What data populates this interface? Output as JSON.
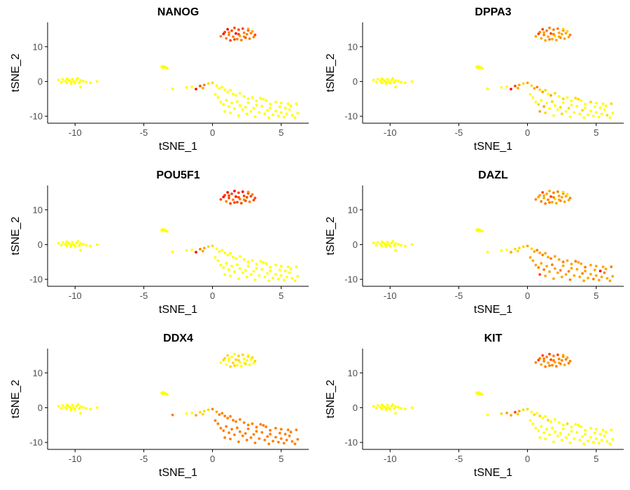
{
  "chart_data": {
    "type": "scatter",
    "xlabel": "tSNE_1",
    "ylabel": "tSNE_2",
    "xlim": [
      -12,
      7
    ],
    "ylim": [
      -12,
      17
    ],
    "xticks": [
      -10,
      -5,
      0,
      5
    ],
    "yticks": [
      -10,
      0,
      10
    ],
    "xtick_labels": [
      "-10",
      "-5",
      "0",
      "5"
    ],
    "ytick_labels": [
      "-10",
      "0",
      "10"
    ],
    "grid": false,
    "legend": "none",
    "color_scale": [
      "#ffff00",
      "#ffd700",
      "#ffa500",
      "#ff7f00",
      "#ff4500",
      "#ff0000"
    ],
    "points": [
      [
        -11.2,
        0.4
      ],
      [
        -11.0,
        -0.2
      ],
      [
        -10.9,
        0.6
      ],
      [
        -10.7,
        0.1
      ],
      [
        -10.6,
        -0.4
      ],
      [
        -10.5,
        0.5
      ],
      [
        -10.4,
        0.2
      ],
      [
        -10.3,
        -0.1
      ],
      [
        -10.2,
        0.7
      ],
      [
        -10.1,
        0.0
      ],
      [
        -10.0,
        -0.5
      ],
      [
        -9.9,
        0.4
      ],
      [
        -9.8,
        0.9
      ],
      [
        -9.7,
        -0.3
      ],
      [
        -9.6,
        0.3
      ],
      [
        -9.4,
        0.1
      ],
      [
        -9.2,
        -0.2
      ],
      [
        -8.9,
        -0.4
      ],
      [
        -10.3,
        -0.6
      ],
      [
        -10.6,
        0.8
      ],
      [
        -9.6,
        -1.6
      ],
      [
        -8.4,
        0.0
      ],
      [
        -3.7,
        4.2
      ],
      [
        -3.6,
        3.9
      ],
      [
        -3.5,
        4.3
      ],
      [
        -3.4,
        4.0
      ],
      [
        -3.3,
        3.8
      ],
      [
        -3.6,
        4.4
      ],
      [
        -2.9,
        -2.1
      ],
      [
        -1.9,
        -1.7
      ],
      [
        -1.5,
        -1.5
      ],
      [
        -0.9,
        -1.3
      ],
      [
        -0.6,
        -1.0
      ],
      [
        -0.3,
        -0.6
      ],
      [
        -1.2,
        -2.2
      ],
      [
        -0.7,
        -1.9
      ],
      [
        0.0,
        -0.4
      ],
      [
        0.3,
        -1.2
      ],
      [
        0.5,
        -2.0
      ],
      [
        0.7,
        -1.6
      ],
      [
        0.9,
        -2.4
      ],
      [
        1.1,
        -3.0
      ],
      [
        1.3,
        -2.5
      ],
      [
        1.5,
        -3.6
      ],
      [
        1.7,
        -4.0
      ],
      [
        2.0,
        -3.4
      ],
      [
        2.3,
        -4.3
      ],
      [
        2.6,
        -5.0
      ],
      [
        2.9,
        -4.6
      ],
      [
        3.2,
        -5.6
      ],
      [
        3.5,
        -4.8
      ],
      [
        3.9,
        -5.5
      ],
      [
        4.2,
        -6.5
      ],
      [
        4.6,
        -5.9
      ],
      [
        5.0,
        -6.2
      ],
      [
        5.3,
        -7.6
      ],
      [
        5.7,
        -7.0
      ],
      [
        6.1,
        -6.4
      ],
      [
        0.4,
        -4.6
      ],
      [
        0.6,
        -5.9
      ],
      [
        0.8,
        -6.6
      ],
      [
        1.0,
        -5.4
      ],
      [
        1.2,
        -7.2
      ],
      [
        1.4,
        -6.2
      ],
      [
        1.6,
        -7.8
      ],
      [
        1.8,
        -5.8
      ],
      [
        2.0,
        -6.9
      ],
      [
        2.2,
        -8.1
      ],
      [
        2.4,
        -7.4
      ],
      [
        2.6,
        -6.1
      ],
      [
        2.8,
        -8.6
      ],
      [
        3.0,
        -7.7
      ],
      [
        3.2,
        -6.8
      ],
      [
        3.4,
        -8.9
      ],
      [
        3.6,
        -7.1
      ],
      [
        3.8,
        -9.3
      ],
      [
        4.0,
        -8.3
      ],
      [
        4.2,
        -7.6
      ],
      [
        4.4,
        -9.6
      ],
      [
        4.6,
        -8.5
      ],
      [
        4.8,
        -9.9
      ],
      [
        5.0,
        -8.9
      ],
      [
        5.2,
        -10.2
      ],
      [
        5.4,
        -9.3
      ],
      [
        5.6,
        -8.1
      ],
      [
        5.8,
        -9.7
      ],
      [
        6.0,
        -10.4
      ],
      [
        6.2,
        -9.1
      ],
      [
        0.2,
        -3.7
      ],
      [
        0.9,
        -8.6
      ],
      [
        1.3,
        -9.0
      ],
      [
        1.9,
        -9.8
      ],
      [
        2.5,
        -9.3
      ],
      [
        3.1,
        -10.1
      ],
      [
        3.7,
        -5.1
      ],
      [
        4.1,
        -10.4
      ],
      [
        4.9,
        -7.3
      ],
      [
        5.5,
        -6.4
      ],
      [
        0.6,
        13.0
      ],
      [
        0.9,
        14.2
      ],
      [
        1.0,
        12.4
      ],
      [
        1.1,
        15.0
      ],
      [
        1.2,
        13.4
      ],
      [
        1.3,
        11.8
      ],
      [
        1.4,
        14.6
      ],
      [
        1.5,
        12.9
      ],
      [
        1.6,
        15.4
      ],
      [
        1.7,
        13.8
      ],
      [
        1.8,
        12.2
      ],
      [
        1.9,
        14.9
      ],
      [
        2.0,
        13.1
      ],
      [
        2.1,
        11.9
      ],
      [
        2.2,
        15.2
      ],
      [
        2.3,
        14.0
      ],
      [
        2.4,
        12.6
      ],
      [
        2.5,
        13.6
      ],
      [
        2.6,
        14.7
      ],
      [
        2.7,
        12.3
      ],
      [
        2.8,
        13.9
      ],
      [
        2.9,
        14.4
      ],
      [
        3.0,
        12.8
      ],
      [
        3.1,
        13.4
      ],
      [
        1.2,
        14.1
      ],
      [
        1.6,
        12.1
      ],
      [
        2.3,
        12.9
      ],
      [
        1.9,
        13.6
      ],
      [
        2.6,
        15.1
      ],
      [
        0.8,
        13.7
      ]
    ],
    "panels": [
      {
        "title": "NANOG",
        "levels": [
          0,
          0,
          0,
          0,
          0,
          0,
          0,
          0,
          0,
          0,
          0,
          0,
          0,
          0,
          0,
          0,
          0,
          0,
          0,
          0,
          0,
          0,
          0,
          0,
          0,
          0,
          0,
          0,
          0,
          0,
          0,
          4,
          3,
          1,
          5,
          2,
          1,
          0,
          0,
          0,
          0,
          0,
          0,
          0,
          0,
          0,
          0,
          0,
          0,
          0,
          0,
          0,
          0,
          0,
          0,
          0,
          0,
          0,
          0,
          0,
          0,
          0,
          0,
          0,
          0,
          0,
          0,
          0,
          0,
          0,
          0,
          0,
          0,
          0,
          0,
          0,
          0,
          0,
          0,
          0,
          0,
          0,
          0,
          0,
          0,
          0,
          0,
          0,
          0,
          0,
          0,
          0,
          0,
          0,
          0,
          0,
          0,
          0,
          3,
          4,
          3,
          5,
          3,
          4,
          4,
          3,
          4,
          5,
          3,
          4,
          2,
          3,
          4,
          3,
          4,
          3,
          4,
          3,
          3,
          2,
          3,
          4,
          3,
          4,
          3,
          4,
          2,
          5
        ]
      },
      {
        "title": "DPPA3",
        "levels": [
          0,
          0,
          0,
          0,
          0,
          0,
          0,
          0,
          0,
          0,
          0,
          0,
          0,
          0,
          0,
          0,
          0,
          0,
          0,
          0,
          0,
          0,
          0,
          0,
          0,
          0,
          0,
          0,
          0,
          0,
          0,
          4,
          2,
          1,
          5,
          2,
          2,
          1,
          2,
          3,
          1,
          2,
          1,
          0,
          2,
          1,
          0,
          1,
          0,
          0,
          1,
          0,
          0,
          1,
          0,
          0,
          0,
          1,
          0,
          0,
          1,
          0,
          2,
          0,
          0,
          1,
          0,
          0,
          1,
          0,
          0,
          1,
          0,
          0,
          0,
          0,
          1,
          0,
          0,
          0,
          0,
          0,
          0,
          0,
          0,
          1,
          0,
          0,
          0,
          2,
          1,
          0,
          1,
          0,
          1,
          0,
          0,
          0,
          2,
          3,
          2,
          4,
          3,
          2,
          3,
          2,
          3,
          4,
          2,
          3,
          1,
          2,
          3,
          2,
          3,
          2,
          3,
          2,
          2,
          1,
          2,
          3,
          2,
          3,
          2,
          3,
          1,
          4
        ]
      },
      {
        "title": "POU5F1",
        "levels": [
          0,
          0,
          0,
          0,
          0,
          0,
          0,
          0,
          0,
          0,
          0,
          0,
          0,
          0,
          0,
          0,
          0,
          0,
          0,
          0,
          0,
          0,
          0,
          0,
          0,
          0,
          0,
          0,
          0,
          0,
          0,
          3,
          2,
          1,
          5,
          2,
          1,
          0,
          0,
          0,
          0,
          0,
          0,
          0,
          0,
          0,
          0,
          0,
          0,
          0,
          0,
          0,
          0,
          0,
          0,
          0,
          0,
          0,
          0,
          0,
          0,
          0,
          0,
          0,
          0,
          0,
          0,
          0,
          0,
          0,
          0,
          0,
          0,
          0,
          0,
          0,
          0,
          0,
          0,
          0,
          0,
          0,
          0,
          0,
          0,
          0,
          0,
          0,
          0,
          0,
          0,
          0,
          0,
          0,
          0,
          0,
          0,
          0,
          4,
          4,
          3,
          5,
          4,
          4,
          4,
          3,
          5,
          5,
          4,
          4,
          3,
          4,
          5,
          4,
          4,
          4,
          4,
          3,
          4,
          3,
          4,
          4,
          4,
          4,
          3,
          4,
          3,
          5
        ]
      },
      {
        "title": "DAZL",
        "levels": [
          0,
          0,
          0,
          0,
          0,
          0,
          0,
          0,
          0,
          0,
          0,
          0,
          0,
          0,
          0,
          0,
          0,
          0,
          0,
          0,
          0,
          0,
          0,
          0,
          0,
          0,
          0,
          0,
          0,
          0,
          0,
          1,
          1,
          1,
          2,
          1,
          2,
          1,
          2,
          3,
          2,
          3,
          2,
          2,
          3,
          2,
          2,
          3,
          2,
          2,
          3,
          2,
          3,
          2,
          2,
          5,
          2,
          3,
          2,
          2,
          3,
          2,
          3,
          2,
          2,
          3,
          2,
          2,
          3,
          2,
          2,
          3,
          2,
          2,
          2,
          2,
          3,
          2,
          2,
          2,
          3,
          2,
          2,
          2,
          3,
          2,
          2,
          2,
          2,
          4,
          2,
          2,
          2,
          3,
          2,
          2,
          2,
          2,
          3,
          2,
          3,
          4,
          2,
          3,
          2,
          3,
          2,
          4,
          2,
          3,
          1,
          2,
          3,
          2,
          3,
          2,
          3,
          2,
          2,
          1,
          2,
          3,
          2,
          3,
          2,
          3,
          1,
          2
        ]
      },
      {
        "title": "DDX4",
        "levels": [
          0,
          0,
          0,
          0,
          0,
          0,
          0,
          0,
          0,
          0,
          0,
          0,
          0,
          0,
          0,
          0,
          0,
          0,
          0,
          0,
          0,
          0,
          0,
          0,
          0,
          0,
          0,
          0,
          3,
          0,
          0,
          1,
          1,
          1,
          2,
          1,
          3,
          2,
          3,
          3,
          3,
          3,
          3,
          3,
          3,
          3,
          3,
          3,
          3,
          3,
          3,
          3,
          3,
          3,
          3,
          3,
          3,
          3,
          3,
          3,
          3,
          3,
          3,
          3,
          3,
          3,
          3,
          3,
          3,
          3,
          3,
          3,
          3,
          3,
          3,
          3,
          3,
          3,
          3,
          3,
          3,
          3,
          3,
          3,
          3,
          3,
          3,
          3,
          3,
          3,
          3,
          3,
          3,
          3,
          3,
          3,
          3,
          3,
          0,
          1,
          0,
          1,
          0,
          1,
          0,
          1,
          0,
          1,
          0,
          1,
          0,
          0,
          1,
          0,
          1,
          0,
          1,
          0,
          0,
          1,
          0,
          1,
          0,
          1,
          0,
          1,
          0,
          1
        ]
      },
      {
        "title": "KIT",
        "levels": [
          0,
          0,
          0,
          0,
          0,
          0,
          0,
          0,
          0,
          0,
          0,
          0,
          0,
          0,
          0,
          0,
          0,
          0,
          0,
          0,
          0,
          0,
          0,
          0,
          0,
          0,
          0,
          0,
          0,
          1,
          2,
          4,
          2,
          1,
          2,
          1,
          1,
          0,
          1,
          0,
          1,
          0,
          0,
          1,
          0,
          0,
          0,
          0,
          1,
          0,
          0,
          0,
          0,
          0,
          0,
          0,
          0,
          0,
          0,
          0,
          0,
          0,
          0,
          0,
          0,
          0,
          0,
          0,
          0,
          0,
          0,
          0,
          0,
          0,
          0,
          0,
          0,
          0,
          0,
          0,
          0,
          0,
          0,
          0,
          0,
          0,
          0,
          0,
          0,
          0,
          0,
          0,
          0,
          0,
          0,
          0,
          0,
          0,
          3,
          3,
          2,
          4,
          3,
          3,
          3,
          2,
          4,
          4,
          3,
          3,
          2,
          3,
          4,
          3,
          3,
          3,
          3,
          2,
          3,
          2,
          3,
          3,
          3,
          3,
          2,
          3,
          2,
          4
        ]
      }
    ]
  }
}
